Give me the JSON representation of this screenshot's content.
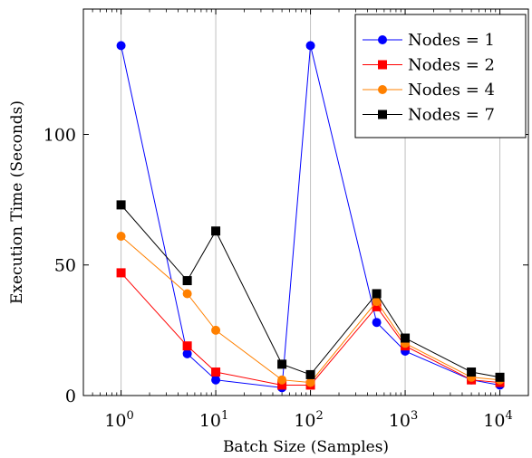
{
  "chart_data": {
    "type": "line",
    "xlabel": "Batch Size (Samples)",
    "ylabel": "Execution Time (Seconds)",
    "x_scale": "log",
    "xlim": [
      0.4,
      20000
    ],
    "ylim": [
      0,
      148
    ],
    "x_ticks": [
      {
        "value": 1,
        "base": "10",
        "exp": "0"
      },
      {
        "value": 10,
        "base": "10",
        "exp": "1"
      },
      {
        "value": 100,
        "base": "10",
        "exp": "2"
      },
      {
        "value": 1000,
        "base": "10",
        "exp": "3"
      },
      {
        "value": 10000,
        "base": "10",
        "exp": "4"
      }
    ],
    "y_ticks": [
      0,
      50,
      100
    ],
    "grid": "vertical major",
    "legend_position": "top-right",
    "x": [
      1,
      5,
      10,
      50,
      100,
      500,
      1000,
      5000,
      10000
    ],
    "series": [
      {
        "name": "Nodes = 1",
        "color": "#0000ff",
        "marker": "circle",
        "values": [
          134,
          16,
          6,
          3,
          134,
          28,
          17,
          6,
          4
        ]
      },
      {
        "name": "Nodes = 2",
        "color": "#ff0000",
        "marker": "square",
        "values": [
          47,
          19,
          9,
          4,
          4,
          34,
          19,
          6,
          5
        ]
      },
      {
        "name": "Nodes = 4",
        "color": "#ff8000",
        "marker": "circle",
        "values": [
          61,
          39,
          25,
          6,
          5,
          36,
          20,
          7,
          6
        ]
      },
      {
        "name": "Nodes = 7",
        "color": "#000000",
        "marker": "square",
        "values": [
          73,
          44,
          63,
          12,
          8,
          39,
          22,
          9,
          7
        ]
      }
    ]
  }
}
